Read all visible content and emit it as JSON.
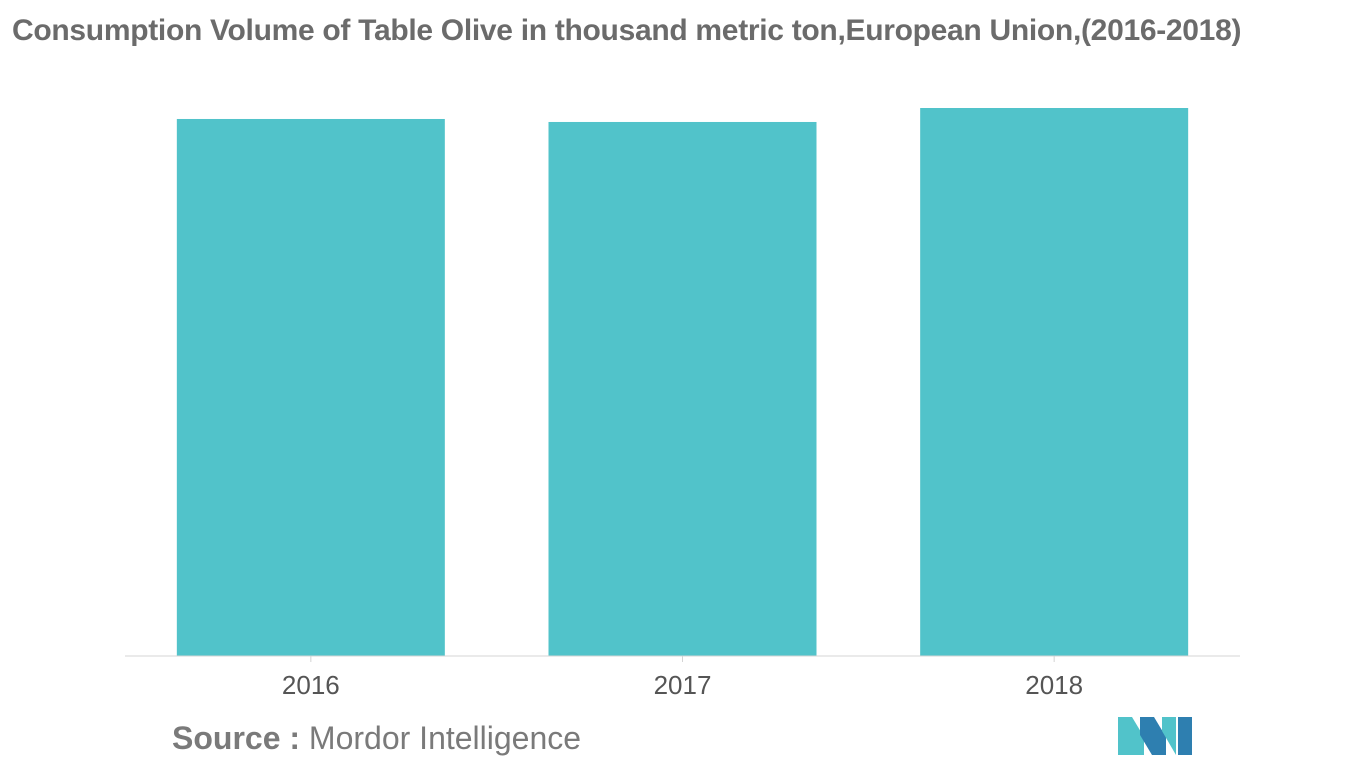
{
  "title": "Consumption Volume of Table Olive in thousand metric ton,European Union,(2016-2018)",
  "source": {
    "label": "Source :",
    "text": "Mordor Intelligence"
  },
  "logo_icon": "mordor-intelligence-logo-icon",
  "colors": {
    "bar": "#51c3ca",
    "axis": "#d4d4d4",
    "tick_label": "#555555",
    "title": "#6b6b6b",
    "logo_dark": "#2e7fb0",
    "logo_light": "#51c3ca"
  },
  "chart_data": {
    "type": "bar",
    "categories": [
      "2016",
      "2017",
      "2018"
    ],
    "values": [
      538,
      535,
      549
    ],
    "title": "Consumption Volume of Table Olive in thousand metric ton,European Union,(2016-2018)",
    "xlabel": "",
    "ylabel": "",
    "ylim": [
      0,
      549
    ],
    "grid": false,
    "legend": "none"
  }
}
